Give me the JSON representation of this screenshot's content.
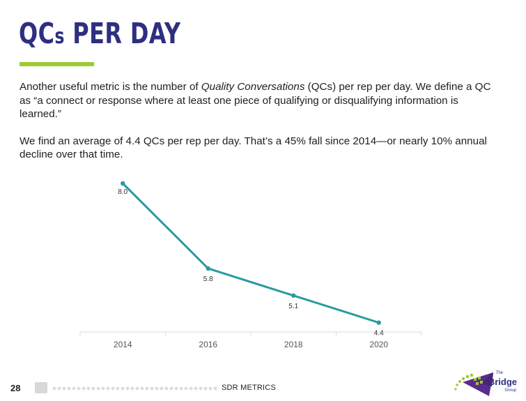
{
  "header": {
    "title_part1": "QC",
    "title_part2": "s",
    "title_part3": " PER DAY"
  },
  "body": {
    "p1_pre": "Another useful metric is the number of ",
    "p1_italic": "Quality Conversations",
    "p1_post": " (QCs) per rep per day. We define a QC as “a connect or response where at least one piece of qualifying or disqualifying information is learned.”",
    "p2": "We find an average of 4.4 QCs per rep per day. That’s a 45% fall since 2014—or nearly 10% annual decline over that time."
  },
  "chart_data": {
    "type": "line",
    "categories": [
      "2014",
      "2016",
      "2018",
      "2020"
    ],
    "values": [
      8.0,
      5.8,
      5.1,
      4.4
    ],
    "data_labels": [
      "8.0",
      "5.8",
      "5.1",
      "4.4"
    ],
    "title": "",
    "xlabel": "",
    "ylabel": "",
    "ylim": [
      0,
      10
    ],
    "grid": false,
    "legend": "none",
    "line_color": "#2a9aa0"
  },
  "footer": {
    "page_number": "28",
    "section_label": "SDR METRICS",
    "brand_the": "The",
    "brand_name": "Bridge",
    "brand_group": "Group"
  },
  "colors": {
    "title": "#2e2f7f",
    "accent": "#9acd32",
    "line": "#2a9aa0"
  }
}
